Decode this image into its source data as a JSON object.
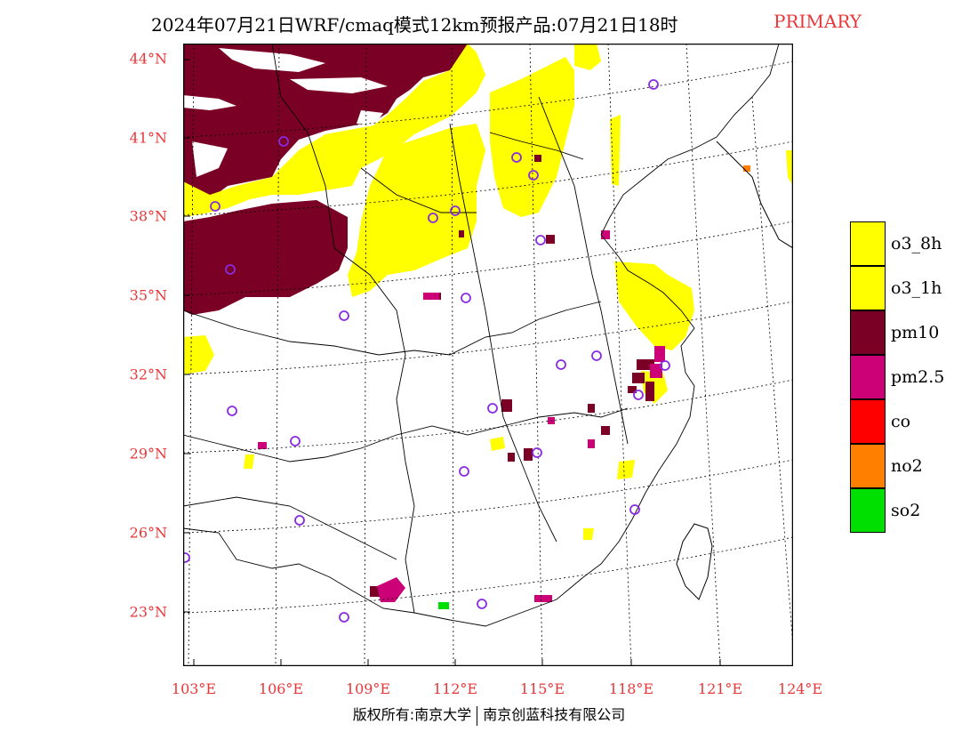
{
  "header": {
    "title": "2024年07月21日WRF/cmaq模式12km预报产品:07月21日18时",
    "tag": "PRIMARY",
    "tag_color": "#e8373a"
  },
  "map": {
    "lat_labels": [
      "44°N",
      "41°N",
      "38°N",
      "35°N",
      "32°N",
      "29°N",
      "26°N",
      "23°N"
    ],
    "lon_labels": [
      "103°E",
      "106°E",
      "109°E",
      "112°E",
      "115°E",
      "118°E",
      "121°E",
      "124°E"
    ]
  },
  "legend": {
    "items": [
      {
        "label": "o3_8h",
        "color": "#ffff00"
      },
      {
        "label": "o3_1h",
        "color": "#ffff00"
      },
      {
        "label": "pm10",
        "color": "#7a0026"
      },
      {
        "label": "pm2.5",
        "color": "#cc0077"
      },
      {
        "label": "co",
        "color": "#ff0000"
      },
      {
        "label": "no2",
        "color": "#ff7f00"
      },
      {
        "label": "so2",
        "color": "#00e000"
      }
    ]
  },
  "footer": {
    "left": "版权所有:南京大学",
    "right": "南京创蓝科技有限公司"
  },
  "colors": {
    "label_red": "#e8373a",
    "pm10": "#7a0026",
    "o3": "#ffff00",
    "pm25": "#cc0077",
    "site_circle": "#8a2be2"
  }
}
